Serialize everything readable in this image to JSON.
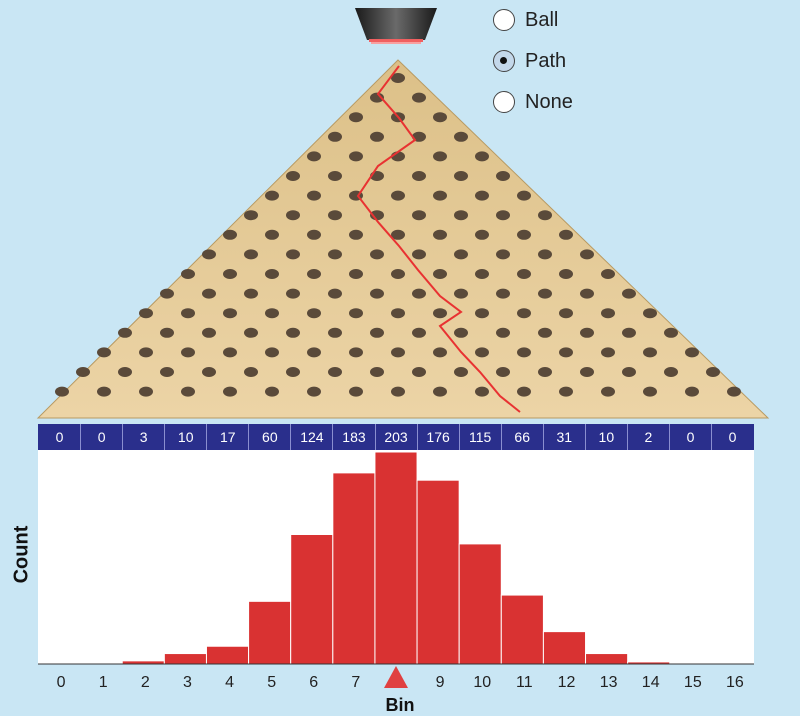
{
  "radio_options": [
    {
      "label": "Ball",
      "selected": false
    },
    {
      "label": "Path",
      "selected": true
    },
    {
      "label": "None",
      "selected": false
    }
  ],
  "counts_bar": [
    "0",
    "0",
    "3",
    "10",
    "17",
    "60",
    "124",
    "183",
    "203",
    "176",
    "115",
    "66",
    "31",
    "10",
    "2",
    "0",
    "0"
  ],
  "axis": {
    "y_label": "Count",
    "x_label": "Bin"
  },
  "colors": {
    "background": "#c9e6f4",
    "board": "#e6cb98",
    "path": "#e83232",
    "bars": "#d93232",
    "counts_bar": "#2a2f8c",
    "marker": "#e04040"
  },
  "icons": {
    "funnel": "funnel-icon",
    "marker": "triangle-marker-icon"
  },
  "chart_data": {
    "type": "bar",
    "categories": [
      "0",
      "1",
      "2",
      "3",
      "4",
      "5",
      "6",
      "7",
      "8",
      "9",
      "10",
      "11",
      "12",
      "13",
      "14",
      "15",
      "16"
    ],
    "values": [
      0,
      0,
      3,
      10,
      17,
      60,
      124,
      183,
      203,
      176,
      115,
      66,
      31,
      10,
      2,
      0,
      0
    ],
    "xlabel": "Bin",
    "ylabel": "Count",
    "marker_bin": 8,
    "grid": false
  }
}
